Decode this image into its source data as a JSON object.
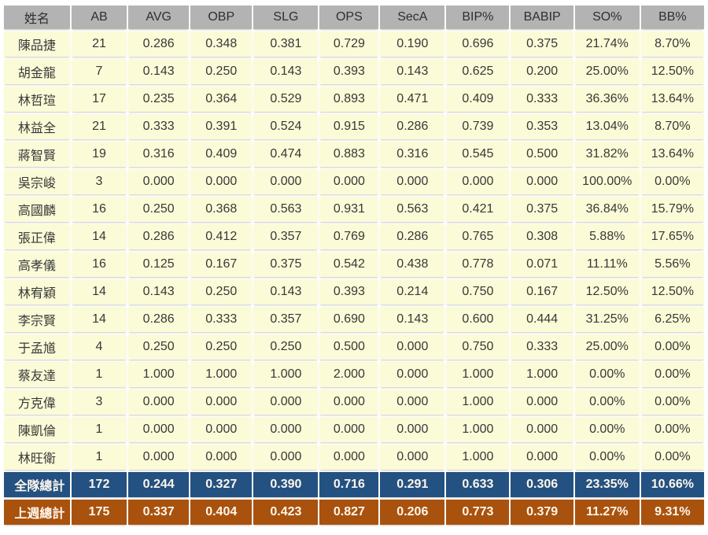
{
  "colors": {
    "header_bg": "#b3b3b3",
    "row_bg": "#fbfbd8",
    "team_total_bg": "#235181",
    "lastweek_total_bg": "#a9520e",
    "total_text": "#fdf6ec",
    "body_text": "#383838"
  },
  "chart_data": {
    "type": "table",
    "columns": [
      "姓名",
      "AB",
      "AVG",
      "OBP",
      "SLG",
      "OPS",
      "SecA",
      "BIP%",
      "BABIP",
      "SO%",
      "BB%"
    ],
    "rows": [
      {
        "label": "陳品捷",
        "values": [
          "21",
          "0.286",
          "0.348",
          "0.381",
          "0.729",
          "0.190",
          "0.696",
          "0.375",
          "21.74%",
          "8.70%"
        ]
      },
      {
        "label": "胡金龍",
        "values": [
          "7",
          "0.143",
          "0.250",
          "0.143",
          "0.393",
          "0.143",
          "0.625",
          "0.200",
          "25.00%",
          "12.50%"
        ]
      },
      {
        "label": "林哲瑄",
        "values": [
          "17",
          "0.235",
          "0.364",
          "0.529",
          "0.893",
          "0.471",
          "0.409",
          "0.333",
          "36.36%",
          "13.64%"
        ]
      },
      {
        "label": "林益全",
        "values": [
          "21",
          "0.333",
          "0.391",
          "0.524",
          "0.915",
          "0.286",
          "0.739",
          "0.353",
          "13.04%",
          "8.70%"
        ]
      },
      {
        "label": "蔣智賢",
        "values": [
          "19",
          "0.316",
          "0.409",
          "0.474",
          "0.883",
          "0.316",
          "0.545",
          "0.500",
          "31.82%",
          "13.64%"
        ]
      },
      {
        "label": "吳宗峻",
        "values": [
          "3",
          "0.000",
          "0.000",
          "0.000",
          "0.000",
          "0.000",
          "0.000",
          "0.000",
          "100.00%",
          "0.00%"
        ]
      },
      {
        "label": "高國麟",
        "values": [
          "16",
          "0.250",
          "0.368",
          "0.563",
          "0.931",
          "0.563",
          "0.421",
          "0.375",
          "36.84%",
          "15.79%"
        ]
      },
      {
        "label": "張正偉",
        "values": [
          "14",
          "0.286",
          "0.412",
          "0.357",
          "0.769",
          "0.286",
          "0.765",
          "0.308",
          "5.88%",
          "17.65%"
        ]
      },
      {
        "label": "高孝儀",
        "values": [
          "16",
          "0.125",
          "0.167",
          "0.375",
          "0.542",
          "0.438",
          "0.778",
          "0.071",
          "11.11%",
          "5.56%"
        ]
      },
      {
        "label": "林宥穎",
        "values": [
          "14",
          "0.143",
          "0.250",
          "0.143",
          "0.393",
          "0.214",
          "0.750",
          "0.167",
          "12.50%",
          "12.50%"
        ]
      },
      {
        "label": "李宗賢",
        "values": [
          "14",
          "0.286",
          "0.333",
          "0.357",
          "0.690",
          "0.143",
          "0.600",
          "0.444",
          "31.25%",
          "6.25%"
        ]
      },
      {
        "label": "于孟馗",
        "values": [
          "4",
          "0.250",
          "0.250",
          "0.250",
          "0.500",
          "0.000",
          "0.750",
          "0.333",
          "25.00%",
          "0.00%"
        ]
      },
      {
        "label": "蔡友達",
        "values": [
          "1",
          "1.000",
          "1.000",
          "1.000",
          "2.000",
          "0.000",
          "1.000",
          "1.000",
          "0.00%",
          "0.00%"
        ]
      },
      {
        "label": "方克偉",
        "values": [
          "3",
          "0.000",
          "0.000",
          "0.000",
          "0.000",
          "0.000",
          "1.000",
          "0.000",
          "0.00%",
          "0.00%"
        ]
      },
      {
        "label": "陳凱倫",
        "values": [
          "1",
          "0.000",
          "0.000",
          "0.000",
          "0.000",
          "0.000",
          "1.000",
          "0.000",
          "0.00%",
          "0.00%"
        ]
      },
      {
        "label": "林旺衛",
        "values": [
          "1",
          "0.000",
          "0.000",
          "0.000",
          "0.000",
          "0.000",
          "1.000",
          "0.000",
          "0.00%",
          "0.00%"
        ]
      }
    ],
    "total_rows": [
      {
        "label": "全隊總計",
        "type": "team",
        "values": [
          "172",
          "0.244",
          "0.327",
          "0.390",
          "0.716",
          "0.291",
          "0.633",
          "0.306",
          "23.35%",
          "10.66%"
        ]
      },
      {
        "label": "上週總計",
        "type": "lastweek",
        "values": [
          "175",
          "0.337",
          "0.404",
          "0.423",
          "0.827",
          "0.206",
          "0.773",
          "0.379",
          "11.27%",
          "9.31%"
        ]
      }
    ],
    "layout": {
      "column_widths_pct": [
        9.6,
        8.1,
        8.8,
        9.0,
        9.4,
        8.6,
        9.4,
        9.2,
        9.1,
        9.4,
        9.2
      ]
    }
  }
}
